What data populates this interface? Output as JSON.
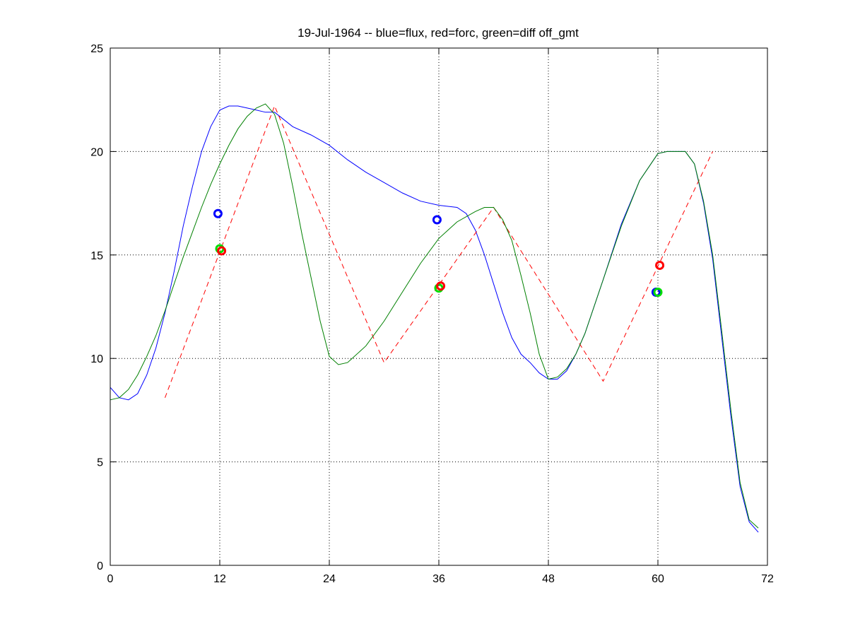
{
  "chart_data": {
    "type": "line",
    "title": "19-Jul-1964 -- blue=flux, red=forc, green=diff off_gmt",
    "xlabel": "",
    "ylabel": "",
    "xlim": [
      0,
      72
    ],
    "ylim": [
      0,
      25
    ],
    "xticks": [
      0,
      12,
      24,
      36,
      48,
      60,
      72
    ],
    "yticks": [
      0,
      5,
      10,
      15,
      20,
      25
    ],
    "grid": true,
    "series": [
      {
        "name": "flux",
        "color": "#0000ff",
        "style": "solid",
        "x": [
          0,
          1,
          2,
          3,
          4,
          5,
          6,
          7,
          8,
          9,
          10,
          11,
          12,
          13,
          14,
          15,
          16,
          17,
          18,
          20,
          22,
          24,
          26,
          28,
          30,
          32,
          34,
          36,
          38,
          39,
          40,
          41,
          42,
          43,
          44,
          45,
          46,
          47,
          48,
          49,
          50,
          51,
          52,
          54,
          56,
          58,
          60,
          61,
          62,
          63,
          64,
          65,
          66,
          67,
          68,
          69,
          70,
          71
        ],
        "y": [
          8.6,
          8.1,
          8.0,
          8.3,
          9.2,
          10.5,
          12.2,
          14.2,
          16.4,
          18.3,
          20.0,
          21.2,
          22.0,
          22.2,
          22.2,
          22.1,
          22.0,
          21.9,
          21.9,
          21.2,
          20.8,
          20.3,
          19.6,
          19.0,
          18.5,
          18.0,
          17.6,
          17.4,
          17.3,
          17.0,
          16.2,
          15.0,
          13.6,
          12.2,
          11.0,
          10.2,
          9.8,
          9.3,
          9.0,
          9.0,
          9.4,
          10.2,
          11.2,
          13.8,
          16.5,
          18.6,
          19.9,
          20.0,
          20.0,
          20.0,
          19.4,
          17.5,
          14.8,
          11.0,
          7.2,
          3.8,
          2.1,
          1.6
        ]
      },
      {
        "name": "forc",
        "color": "#ff0000",
        "style": "dashed",
        "x": [
          6,
          18,
          30,
          42,
          54,
          66
        ],
        "y": [
          8.1,
          22.2,
          9.8,
          17.3,
          8.9,
          20.0
        ]
      },
      {
        "name": "diff",
        "color": "#008000",
        "style": "solid",
        "x": [
          0,
          1,
          2,
          3,
          4,
          5,
          6,
          7,
          8,
          9,
          10,
          11,
          12,
          13,
          14,
          15,
          16,
          17,
          18,
          19,
          20,
          21,
          22,
          23,
          24,
          25,
          26,
          28,
          30,
          32,
          34,
          36,
          38,
          40,
          41,
          42,
          43,
          44,
          45,
          46,
          47,
          48,
          49,
          50,
          51,
          52,
          54,
          56,
          58,
          60,
          61,
          62,
          63,
          64,
          65,
          66,
          67,
          68,
          69,
          70,
          71
        ],
        "y": [
          8.0,
          8.1,
          8.5,
          9.2,
          10.1,
          11.1,
          12.3,
          13.6,
          14.9,
          16.1,
          17.3,
          18.4,
          19.4,
          20.3,
          21.1,
          21.7,
          22.1,
          22.3,
          21.8,
          20.4,
          18.3,
          16.0,
          13.9,
          11.8,
          10.1,
          9.7,
          9.8,
          10.6,
          11.8,
          13.2,
          14.6,
          15.8,
          16.6,
          17.1,
          17.3,
          17.3,
          16.7,
          15.7,
          14.0,
          12.2,
          10.2,
          9.0,
          9.1,
          9.5,
          10.2,
          11.2,
          13.8,
          16.4,
          18.6,
          19.9,
          20.0,
          20.0,
          20.0,
          19.4,
          17.6,
          15.0,
          11.3,
          7.5,
          4.0,
          2.2,
          1.8
        ]
      }
    ],
    "markers": [
      {
        "series": "flux",
        "color": "#0000ff",
        "x": 11.8,
        "y": 17.0
      },
      {
        "series": "diff",
        "color": "#00dd00",
        "x": 12.0,
        "y": 15.3
      },
      {
        "series": "forc",
        "color": "#ff0000",
        "x": 12.2,
        "y": 15.2
      },
      {
        "series": "flux",
        "color": "#0000ff",
        "x": 35.8,
        "y": 16.7
      },
      {
        "series": "diff",
        "color": "#00dd00",
        "x": 36.0,
        "y": 13.4
      },
      {
        "series": "forc",
        "color": "#ff0000",
        "x": 36.2,
        "y": 13.5
      },
      {
        "series": "flux",
        "color": "#0000ff",
        "x": 59.8,
        "y": 13.2
      },
      {
        "series": "diff",
        "color": "#00dd00",
        "x": 60.0,
        "y": 13.2
      },
      {
        "series": "forc",
        "color": "#ff0000",
        "x": 60.2,
        "y": 14.5
      }
    ]
  }
}
